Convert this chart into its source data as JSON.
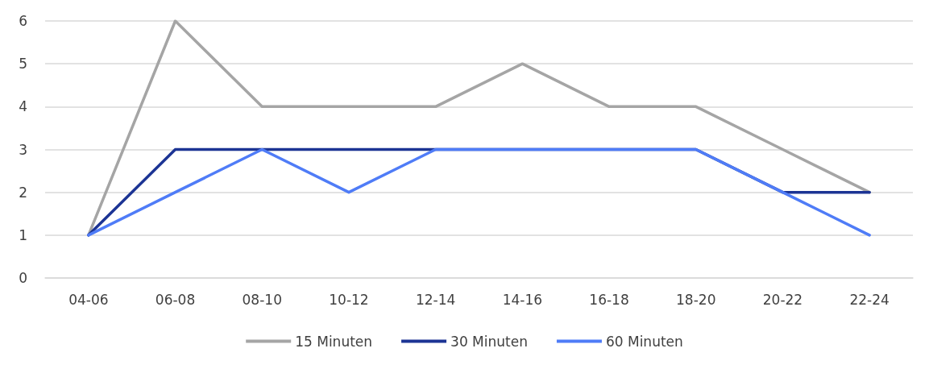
{
  "chart_data": {
    "type": "line",
    "categories": [
      "04-06",
      "06-08",
      "08-10",
      "10-12",
      "12-14",
      "14-16",
      "16-18",
      "18-20",
      "20-22",
      "22-24"
    ],
    "series": [
      {
        "name": "15 Minuten",
        "color": "#a5a5a5",
        "values": [
          1,
          6,
          4,
          4,
          4,
          5,
          4,
          4,
          3,
          2
        ]
      },
      {
        "name": "30 Minuten",
        "color": "#1c3494",
        "values": [
          1,
          3,
          3,
          3,
          3,
          3,
          3,
          3,
          2,
          2
        ]
      },
      {
        "name": "60 Minuten",
        "color": "#4f7cf7",
        "values": [
          1,
          2,
          3,
          2,
          3,
          3,
          3,
          3,
          2,
          1
        ]
      }
    ],
    "ylim": [
      0,
      6
    ],
    "yticks": [
      0,
      1,
      2,
      3,
      4,
      5,
      6
    ],
    "grid": "y",
    "legend": "bottom",
    "marker": "none",
    "line_style": "solid"
  }
}
